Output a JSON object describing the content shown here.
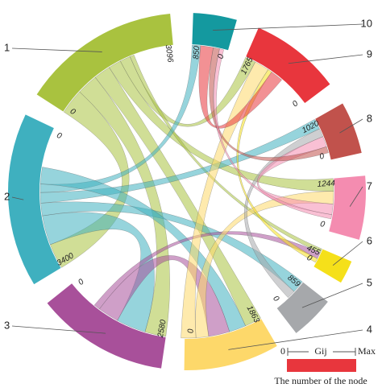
{
  "chart_data": {
    "type": "chord",
    "nodes": [
      {
        "name": "1",
        "color": "#a9c23f",
        "scale": [
          0,
          3096
        ]
      },
      {
        "name": "2",
        "color": "#3fb0bf",
        "scale": [
          3400,
          0
        ]
      },
      {
        "name": "3",
        "color": "#a8509a",
        "scale": [
          2580,
          0
        ]
      },
      {
        "name": "4",
        "color": "#fdd86a",
        "scale": [
          1863,
          0
        ]
      },
      {
        "name": "5",
        "color": "#a6a8ab",
        "scale": [
          859,
          0
        ]
      },
      {
        "name": "6",
        "color": "#f5e01a",
        "scale": [
          455,
          0
        ]
      },
      {
        "name": "7",
        "color": "#f48cb0",
        "scale": [
          1244,
          0
        ]
      },
      {
        "name": "8",
        "color": "#c1524c",
        "scale": [
          1020,
          0
        ]
      },
      {
        "name": "9",
        "color": "#e8363d",
        "scale": [
          1765,
          0
        ]
      },
      {
        "name": "10",
        "color": "#14999f",
        "scale": [
          850,
          0
        ]
      }
    ],
    "links": [
      {
        "source": 0,
        "target": 1,
        "value": 600
      },
      {
        "source": 0,
        "target": 2,
        "value": 500
      },
      {
        "source": 0,
        "target": 3,
        "value": 400
      },
      {
        "source": 0,
        "target": 6,
        "value": 300
      },
      {
        "source": 0,
        "target": 8,
        "value": 250
      },
      {
        "source": 0,
        "target": 5,
        "value": 100
      },
      {
        "source": 1,
        "target": 2,
        "value": 700
      },
      {
        "source": 1,
        "target": 4,
        "value": 300
      },
      {
        "source": 1,
        "target": 7,
        "value": 250
      },
      {
        "source": 1,
        "target": 9,
        "value": 200
      },
      {
        "source": 1,
        "target": 3,
        "value": 400
      },
      {
        "source": 2,
        "target": 3,
        "value": 500
      },
      {
        "source": 2,
        "target": 5,
        "value": 150
      },
      {
        "source": 3,
        "target": 6,
        "value": 300
      },
      {
        "source": 3,
        "target": 8,
        "value": 350
      },
      {
        "source": 4,
        "target": 7,
        "value": 200
      },
      {
        "source": 5,
        "target": 8,
        "value": 100
      },
      {
        "source": 6,
        "target": 7,
        "value": 250
      },
      {
        "source": 8,
        "target": 9,
        "value": 300
      },
      {
        "source": 7,
        "target": 9,
        "value": 150
      },
      {
        "source": 6,
        "target": 9,
        "value": 100
      }
    ],
    "legend": {
      "min": "0",
      "label": "Gij",
      "max": "Max",
      "caption": "The number of the node",
      "color": "#e8363d"
    }
  }
}
